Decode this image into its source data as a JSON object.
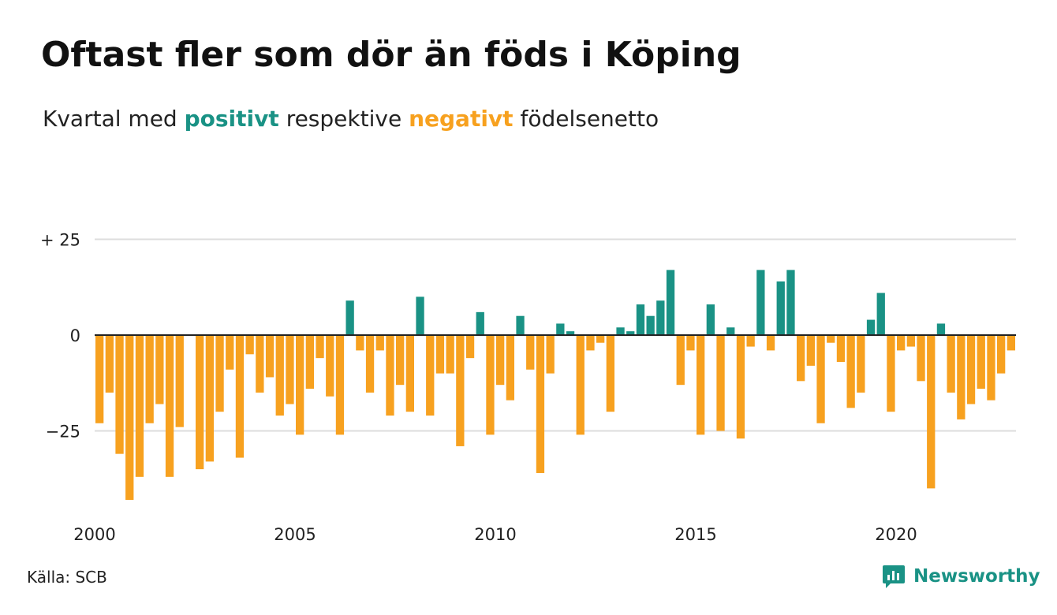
{
  "title": "Oftast fler som dör än föds i Köping",
  "subtitle": {
    "before": "Kvartal med",
    "positive": "positivt",
    "middle": "respektive",
    "negative": "negativt",
    "after": "födelsenetto"
  },
  "source": "Källa: SCB",
  "brand": {
    "name": "Newsworthy",
    "icon": "newsworthy-logo-icon",
    "color": "#1a9285"
  },
  "colors": {
    "positive": "#1a9285",
    "negative": "#f7a11f",
    "grid": "#dddddd",
    "zero_line": "#222222"
  },
  "chart_data": {
    "type": "bar",
    "x_start_year": 2000,
    "periods_per_year": 4,
    "yticks": [
      {
        "value": 25,
        "label": "+ 25"
      },
      {
        "value": 0,
        "label": "0"
      },
      {
        "value": -25,
        "label": "−25"
      }
    ],
    "xticks": [
      {
        "value": 2000,
        "label": "2000"
      },
      {
        "value": 2005,
        "label": "2005"
      },
      {
        "value": 2010,
        "label": "2010"
      },
      {
        "value": 2015,
        "label": "2015"
      },
      {
        "value": 2020,
        "label": "2020"
      }
    ],
    "ylim": [
      -45,
      30
    ],
    "grid": true,
    "values": [
      -23,
      -15,
      -31,
      -43,
      -37,
      -23,
      -18,
      -37,
      -24,
      0,
      -35,
      -33,
      -20,
      -9,
      -32,
      -5,
      -15,
      -11,
      -21,
      -18,
      -26,
      -14,
      -6,
      -16,
      -26,
      9,
      -4,
      -15,
      -4,
      -21,
      -13,
      -20,
      10,
      -21,
      -10,
      -10,
      -29,
      -6,
      6,
      -26,
      -13,
      -17,
      5,
      -9,
      -36,
      -10,
      3,
      1,
      -26,
      -4,
      -2,
      -20,
      2,
      1,
      8,
      5,
      9,
      17,
      -13,
      -4,
      -26,
      8,
      -25,
      2,
      -27,
      -3,
      17,
      -4,
      14,
      17,
      -12,
      -8,
      -23,
      -2,
      -7,
      -19,
      -15,
      4,
      11,
      -20,
      -4,
      -3,
      -12,
      -40,
      3,
      -15,
      -22,
      -18,
      -14,
      -17,
      -10,
      -4
    ]
  }
}
